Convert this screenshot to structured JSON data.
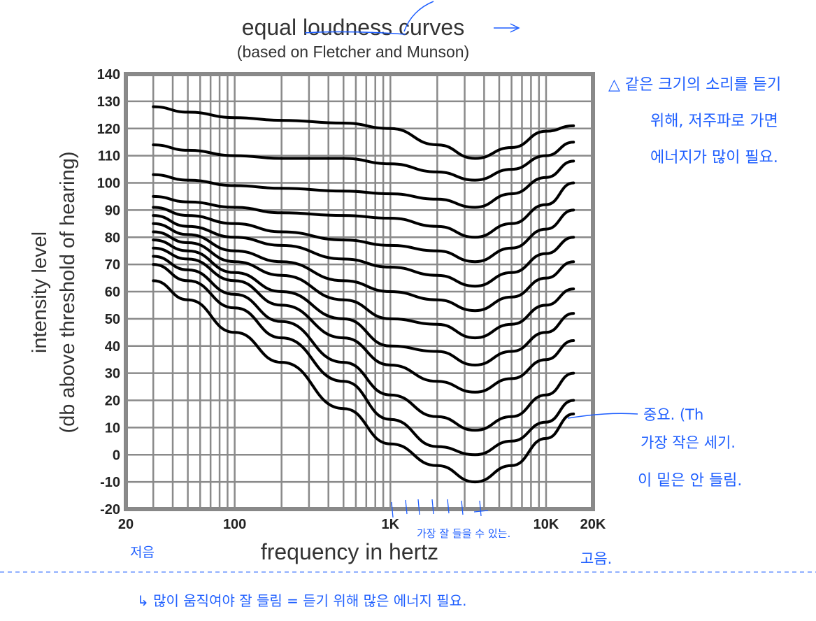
{
  "chart_data": {
    "type": "line",
    "title": "equal loudness curves",
    "subtitle": "(based on Fletcher and Munson)",
    "xlabel": "frequency in hertz",
    "ylabel_line1": "intensity level",
    "ylabel_line2": "(db above threshold of hearing)",
    "x_scale": "log",
    "xlim": [
      20,
      20000
    ],
    "ylim": [
      -20,
      140
    ],
    "grid": true,
    "x_tick_labels": [
      {
        "value": 20,
        "label": "20"
      },
      {
        "value": 100,
        "label": "100"
      },
      {
        "value": 1000,
        "label": "1K"
      },
      {
        "value": 10000,
        "label": "10K"
      },
      {
        "value": 20000,
        "label": "20K"
      }
    ],
    "y_ticks": [
      140,
      130,
      120,
      110,
      100,
      90,
      80,
      70,
      60,
      50,
      40,
      30,
      20,
      10,
      0,
      -10,
      -20
    ],
    "x_grid": [
      20,
      30,
      40,
      50,
      60,
      70,
      80,
      90,
      100,
      200,
      300,
      400,
      500,
      600,
      700,
      800,
      900,
      1000,
      2000,
      3000,
      4000,
      5000,
      6000,
      7000,
      8000,
      9000,
      10000,
      20000
    ],
    "series": [
      {
        "x": [
          30,
          50,
          100,
          200,
          500,
          1000,
          2000,
          3500,
          6000,
          10000,
          15000
        ],
        "y": [
          128,
          126,
          124,
          123,
          122,
          120,
          114,
          109,
          113,
          119,
          121
        ]
      },
      {
        "x": [
          30,
          50,
          100,
          200,
          500,
          1000,
          2000,
          3500,
          6000,
          10000,
          15000
        ],
        "y": [
          114,
          112,
          110,
          109,
          109,
          107,
          104,
          101,
          105,
          110,
          115
        ]
      },
      {
        "x": [
          30,
          50,
          100,
          200,
          500,
          1000,
          2000,
          3500,
          6000,
          10000,
          15000
        ],
        "y": [
          103,
          101,
          99,
          98,
          97,
          96,
          94,
          91,
          96,
          102,
          108
        ]
      },
      {
        "x": [
          30,
          50,
          100,
          200,
          500,
          1000,
          2000,
          3500,
          6000,
          10000,
          15000
        ],
        "y": [
          95,
          93,
          91,
          89,
          88,
          87,
          84,
          80,
          85,
          92,
          100
        ]
      },
      {
        "x": [
          30,
          50,
          100,
          200,
          500,
          1000,
          2000,
          3500,
          6000,
          10000,
          15000
        ],
        "y": [
          91,
          88,
          85,
          82,
          79,
          77,
          75,
          71,
          76,
          83,
          90
        ]
      },
      {
        "x": [
          30,
          50,
          100,
          200,
          500,
          1000,
          2000,
          3500,
          6000,
          10000,
          15000
        ],
        "y": [
          88,
          84,
          80,
          77,
          72,
          69,
          66,
          62,
          67,
          74,
          80
        ]
      },
      {
        "x": [
          30,
          50,
          100,
          200,
          500,
          1000,
          2000,
          3500,
          6000,
          10000,
          15000
        ],
        "y": [
          85,
          81,
          75,
          71,
          64,
          60,
          57,
          53,
          58,
          65,
          71
        ]
      },
      {
        "x": [
          30,
          50,
          100,
          200,
          500,
          1000,
          2000,
          3500,
          6000,
          10000,
          15000
        ],
        "y": [
          82,
          78,
          71,
          66,
          57,
          50,
          48,
          43,
          48,
          55,
          61
        ]
      },
      {
        "x": [
          30,
          50,
          100,
          200,
          500,
          1000,
          2000,
          3500,
          6000,
          10000,
          15000
        ],
        "y": [
          79,
          75,
          67,
          60,
          50,
          40,
          38,
          33,
          38,
          45,
          52
        ]
      },
      {
        "x": [
          30,
          50,
          100,
          200,
          500,
          1000,
          2000,
          3500,
          6000,
          10000,
          15000
        ],
        "y": [
          76,
          72,
          64,
          55,
          43,
          33,
          27,
          23,
          28,
          35,
          42
        ]
      },
      {
        "x": [
          30,
          50,
          100,
          200,
          500,
          1000,
          2000,
          3500,
          6000,
          10000,
          15000
        ],
        "y": [
          73,
          68,
          59,
          49,
          34,
          22,
          14,
          9,
          14,
          22,
          30
        ]
      },
      {
        "x": [
          30,
          50,
          100,
          200,
          500,
          1000,
          2000,
          3500,
          6000,
          10000,
          15000
        ],
        "y": [
          70,
          64,
          54,
          43,
          27,
          13,
          3,
          0,
          5,
          12,
          20
        ]
      },
      {
        "x": [
          30,
          50,
          100,
          200,
          500,
          1000,
          2000,
          3500,
          6000,
          10000,
          15000
        ],
        "y": [
          64,
          57,
          45,
          34,
          17,
          4,
          -4,
          -10,
          -4,
          6,
          15
        ]
      }
    ]
  },
  "annotations": {
    "note_top_line1": "△ 같은 크기의 소리를 듣기",
    "note_top_line2": "위해, 저주파로 가면",
    "note_top_line3": "에너지가 많이 필요.",
    "note_right_line1": "중요. (Th",
    "note_right_line2": "가장 작은 세기.",
    "note_right_line3": "이 밑은 안 들림.",
    "note_mid": "가장 잘 들을 수 있는.",
    "note_low": "저음",
    "note_high": "고음.",
    "note_bottom": "↳ 많이 움직여야 잘 들림 = 듣기 위해 많은 에너지 필요."
  }
}
